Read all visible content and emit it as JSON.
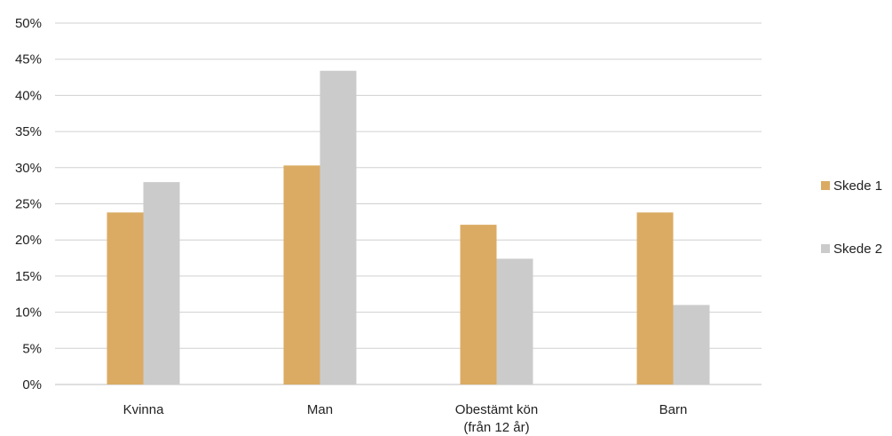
{
  "chart_data": {
    "type": "bar",
    "categories": [
      [
        "Kvinna"
      ],
      [
        "Man"
      ],
      [
        "Obestämt kön",
        "(från 12 år)"
      ],
      [
        "Barn"
      ]
    ],
    "series": [
      {
        "name": "Skede 1",
        "color": "#dbab63",
        "values": [
          23.8,
          30.3,
          22.1,
          23.8
        ]
      },
      {
        "name": "Skede 2",
        "color": "#cbcbcb",
        "values": [
          28.0,
          43.4,
          17.4,
          11.0
        ]
      }
    ],
    "ylim": [
      0,
      50
    ],
    "yticks": [
      "0%",
      "5%",
      "10%",
      "15%",
      "20%",
      "25%",
      "30%",
      "35%",
      "40%",
      "45%",
      "50%"
    ],
    "ytick_values": [
      0,
      5,
      10,
      15,
      20,
      25,
      30,
      35,
      40,
      45,
      50
    ],
    "grid": true,
    "legend_position": "right",
    "title": "",
    "xlabel": "",
    "ylabel": ""
  }
}
